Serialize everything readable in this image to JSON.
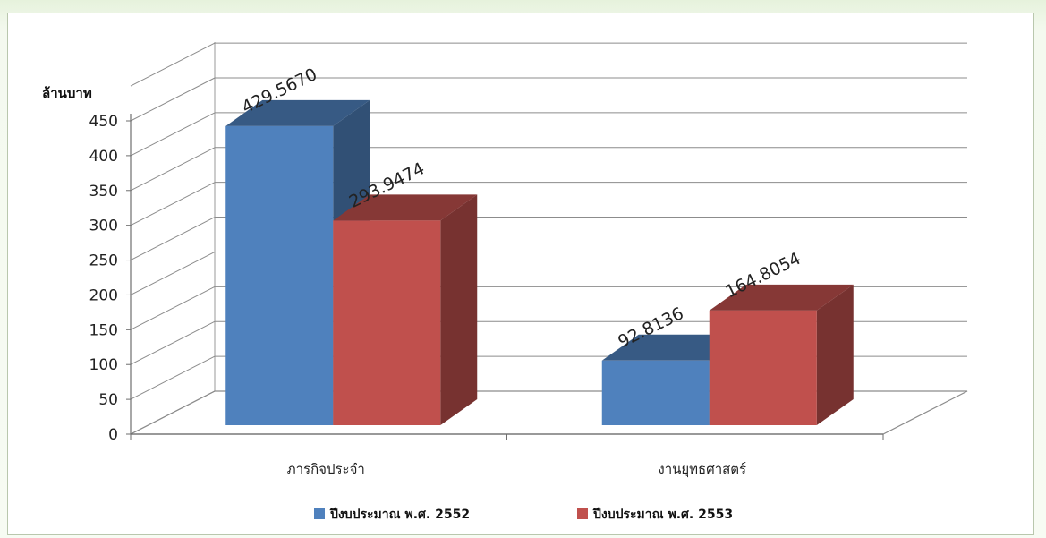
{
  "chart_data": {
    "type": "bar",
    "title": "",
    "ylabel": "ล้านบาท",
    "xlabel": "",
    "ylim": [
      0,
      450
    ],
    "yticks": [
      0,
      50,
      100,
      150,
      200,
      250,
      300,
      350,
      400,
      450
    ],
    "categories": [
      "ภารกิจประจำ",
      "งานยุทธศาสตร์"
    ],
    "series": [
      {
        "name": "ปีงบประมาณ พ.ศ. 2552",
        "values": [
          429.567,
          92.8136
        ],
        "labels": [
          "429.5670",
          "92.8136"
        ],
        "color": "#4f81bd"
      },
      {
        "name": "ปีงบประมาณ พ.ศ. 2553",
        "values": [
          293.9474,
          164.8054
        ],
        "labels": [
          "293.9474",
          "164.8054"
        ],
        "color": "#c0504d"
      }
    ],
    "grid": true,
    "legend": "bottom",
    "style": "3d-clustered-column"
  }
}
